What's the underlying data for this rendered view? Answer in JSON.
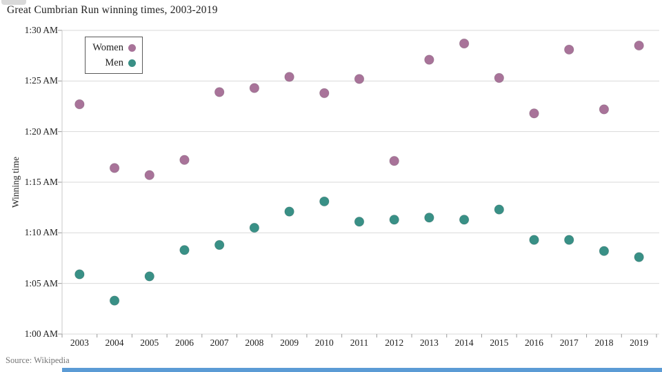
{
  "page": {
    "title": "Great Cumbrian Run winning times, 2003-2019",
    "source": "Source: Wikipedia"
  },
  "colors": {
    "women_dot": "#a87399",
    "men_dot": "#399086",
    "gridline": "#d9d9d9",
    "axis_line": "#c9c9c9",
    "tick_mark": "#999999",
    "text": "#212121",
    "source_text": "#757575",
    "legend_border": "#595959",
    "bottom_bar": "#5b9bd5"
  },
  "chart_data": {
    "type": "scatter",
    "title": "Great Cumbrian Run winning times, 2003-2019",
    "xlabel": "",
    "ylabel": "Winning time",
    "x": [
      2003,
      2004,
      2005,
      2006,
      2007,
      2008,
      2009,
      2010,
      2011,
      2012,
      2013,
      2014,
      2015,
      2016,
      2017,
      2018,
      2019
    ],
    "y_ticks": [
      "1:30 AM",
      "1:25 AM",
      "1:20 AM",
      "1:15 AM",
      "1:10 AM",
      "1:05 AM",
      "1:00 AM"
    ],
    "y_tick_minutes_past_1am": [
      30,
      25,
      20,
      15,
      10,
      5,
      0
    ],
    "ylim_minutes_past_1am": [
      0,
      30
    ],
    "ylim_labels": [
      "1:00 AM",
      "1:30 AM"
    ],
    "grid": "horizontal",
    "legend_position": "top-left",
    "value_unit": "minutes past 1:00 AM (winning time)",
    "series": [
      {
        "name": "Women",
        "color": "#a87399",
        "values_min_past_1am": [
          22.7,
          16.4,
          15.7,
          17.2,
          23.9,
          24.3,
          25.4,
          23.8,
          25.2,
          17.1,
          27.1,
          28.7,
          25.3,
          21.8,
          28.1,
          22.2,
          28.5
        ]
      },
      {
        "name": "Men",
        "color": "#399086",
        "values_min_past_1am": [
          5.9,
          3.3,
          5.7,
          8.3,
          8.8,
          10.5,
          12.1,
          13.1,
          11.1,
          11.3,
          11.5,
          11.3,
          12.3,
          9.3,
          9.3,
          8.2,
          7.6
        ]
      }
    ],
    "source": "Source: Wikipedia"
  }
}
